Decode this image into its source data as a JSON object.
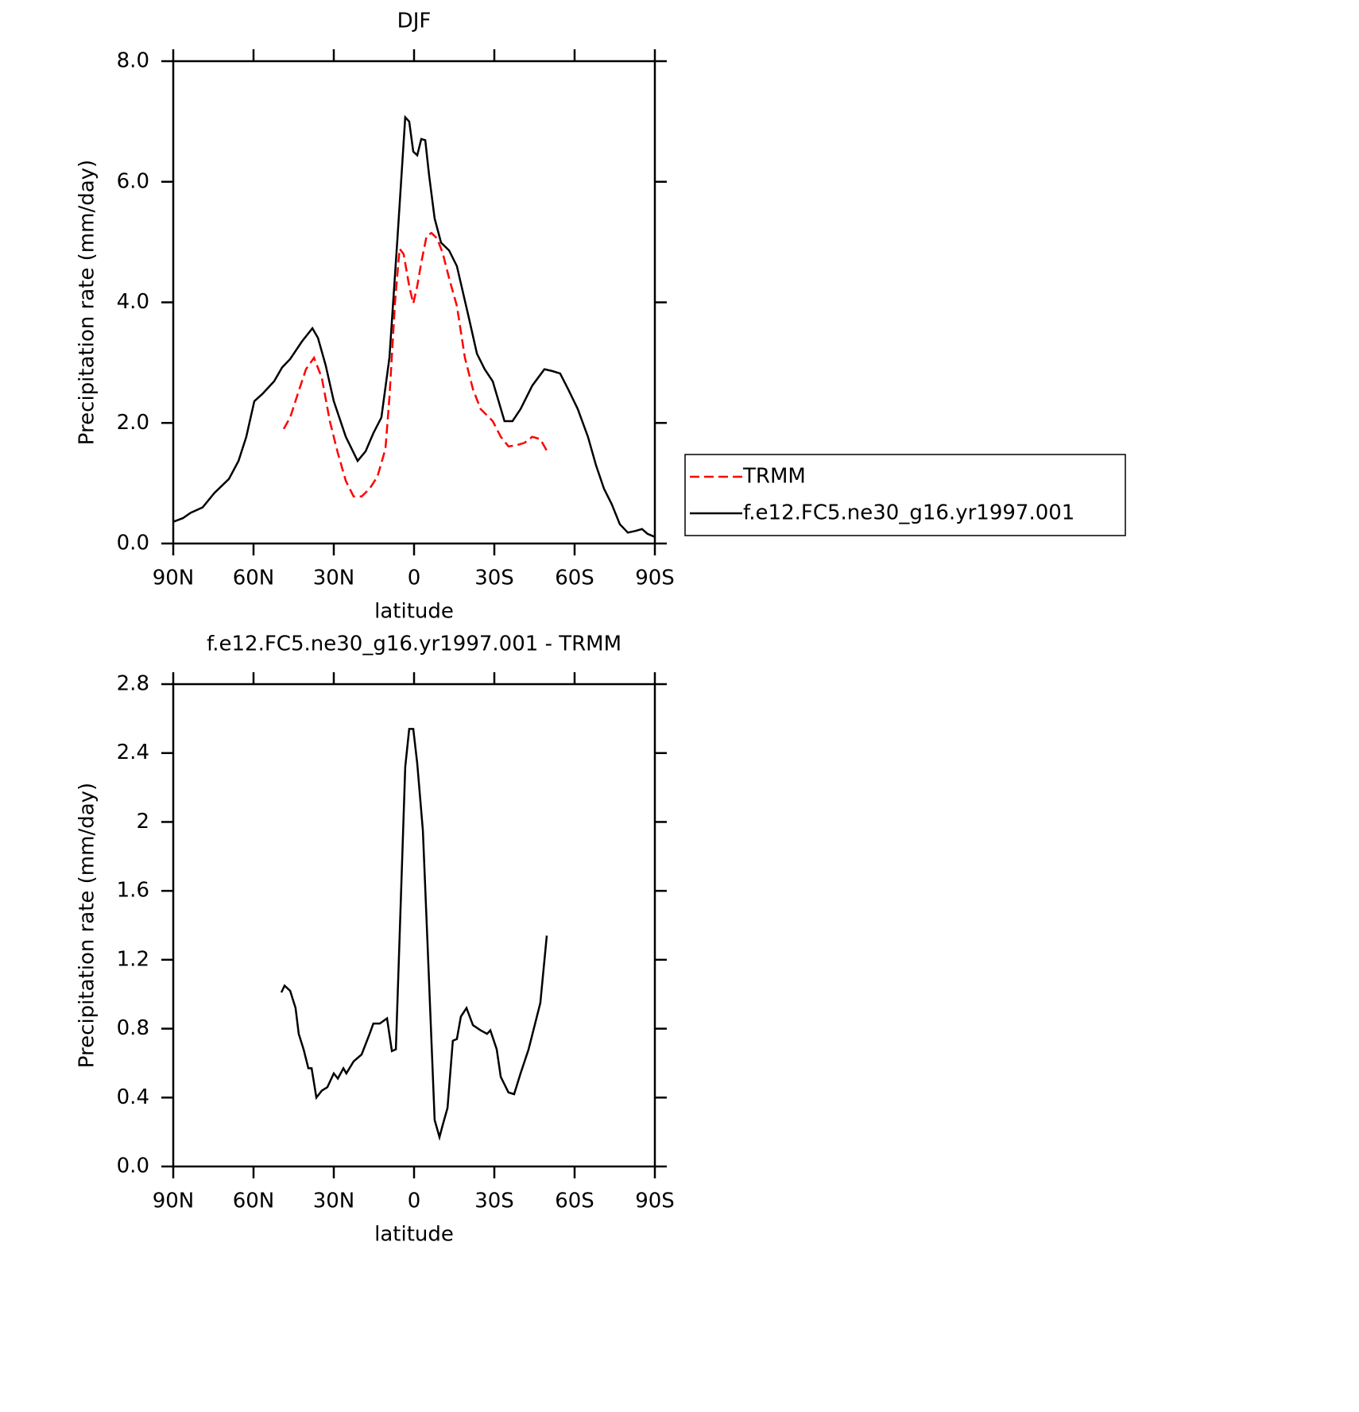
{
  "chart_data": [
    {
      "type": "line",
      "title": "DJF",
      "xlabel": "latitude",
      "ylabel": "Precipitation rate (mm/day)",
      "xlim": [
        90,
        -90
      ],
      "xticks": [
        {
          "value": 90,
          "label": "90N"
        },
        {
          "value": 60,
          "label": "60N"
        },
        {
          "value": 30,
          "label": "30N"
        },
        0,
        {
          "value": -30,
          "label": "30S"
        },
        {
          "value": -60,
          "label": "60S"
        },
        {
          "value": -90,
          "label": "90S"
        }
      ],
      "ylim": [
        0,
        8
      ],
      "yticks": [
        {
          "value": 0,
          "label": "0.0"
        },
        {
          "value": 2,
          "label": "2.0"
        },
        {
          "value": 4,
          "label": "4.0"
        },
        {
          "value": 6,
          "label": "6.0"
        },
        {
          "value": 8,
          "label": "8.0"
        }
      ],
      "series": [
        {
          "name": "TRMM",
          "color": "#ff0000",
          "dash": true,
          "x": [
            48.7,
            46.3,
            43.4,
            40.4,
            37.4,
            34.5,
            31.5,
            28.5,
            25.5,
            22.6,
            19.6,
            16.6,
            13.7,
            10.7,
            9.2,
            7.1,
            5.4,
            3.9,
            1.8,
            0.3,
            -1.2,
            -2.7,
            -4.7,
            -6.5,
            -8.6,
            -10.7,
            -13.1,
            -16,
            -19,
            -22,
            -24.9,
            -29.4,
            -32.4,
            -35.3,
            -38.3,
            -41.3,
            -44.2,
            -47.2,
            -49.6
          ],
          "values": [
            1.9,
            2.09,
            2.49,
            2.89,
            3.08,
            2.75,
            2.03,
            1.5,
            1.04,
            0.78,
            0.78,
            0.91,
            1.11,
            1.57,
            2.42,
            4.01,
            4.89,
            4.8,
            4.27,
            3.98,
            4.27,
            4.66,
            5.1,
            5.15,
            5.06,
            4.82,
            4.4,
            3.94,
            3.08,
            2.56,
            2.23,
            2.03,
            1.77,
            1.61,
            1.63,
            1.67,
            1.77,
            1.73,
            1.54
          ]
        },
        {
          "name": "f.e12.FC5.ne30_g16.yr1997.001",
          "color": "#000000",
          "dash": false,
          "x": [
            90,
            86.4,
            83.5,
            79,
            74.6,
            69.2,
            65.6,
            62.7,
            59.7,
            56.7,
            52.3,
            49.3,
            46.3,
            41.9,
            38,
            35.9,
            33,
            30,
            25.5,
            21.1,
            18.1,
            15.2,
            12.2,
            9.2,
            6.2,
            3.3,
            1.8,
            0.3,
            -1.2,
            -2.7,
            -4.2,
            -5.6,
            -7.7,
            -10.1,
            -13.1,
            -16,
            -20.5,
            -23.5,
            -26.4,
            -29.4,
            -33.8,
            -36.8,
            -39.8,
            -44.2,
            -48.7,
            -51.7,
            -54.6,
            -57.6,
            -61.2,
            -65,
            -68,
            -71,
            -73.9,
            -76.9,
            -79.9,
            -82.9,
            -85.2,
            -87.3,
            -90
          ],
          "values": [
            0.36,
            0.42,
            0.51,
            0.6,
            0.84,
            1.07,
            1.37,
            1.77,
            2.36,
            2.48,
            2.69,
            2.92,
            3.06,
            3.35,
            3.57,
            3.41,
            2.95,
            2.36,
            1.77,
            1.37,
            1.53,
            1.83,
            2.09,
            3.08,
            5.06,
            7.07,
            7.0,
            6.5,
            6.44,
            6.71,
            6.69,
            6.11,
            5.39,
            4.99,
            4.86,
            4.6,
            3.74,
            3.15,
            2.89,
            2.69,
            2.03,
            2.03,
            2.23,
            2.62,
            2.89,
            2.86,
            2.82,
            2.56,
            2.23,
            1.77,
            1.3,
            0.91,
            0.65,
            0.32,
            0.18,
            0.21,
            0.24,
            0.16,
            0.11
          ]
        }
      ]
    },
    {
      "type": "line",
      "title": "f.e12.FC5.ne30_g16.yr1997.001 - TRMM",
      "xlabel": "latitude",
      "ylabel": "Precipitation rate (mm/day)",
      "xlim": [
        90,
        -90
      ],
      "xticks": [
        {
          "value": 90,
          "label": "90N"
        },
        {
          "value": 60,
          "label": "60N"
        },
        {
          "value": 30,
          "label": "30N"
        },
        0,
        {
          "value": -30,
          "label": "30S"
        },
        {
          "value": -60,
          "label": "60S"
        },
        {
          "value": -90,
          "label": "90S"
        }
      ],
      "ylim": [
        0,
        2.8
      ],
      "yticks": [
        {
          "value": 0,
          "label": "0.0"
        },
        0.4,
        0.8,
        1.2,
        1.6,
        2.0,
        2.4,
        2.8
      ],
      "series": [
        {
          "color": "#000000",
          "dash": false,
          "x": [
            49.6,
            48.4,
            46.3,
            44.3,
            43.1,
            41.3,
            39.5,
            38.3,
            36.5,
            34.5,
            32.4,
            30,
            28.5,
            26.4,
            25.3,
            22.6,
            19.6,
            16.6,
            15.2,
            12.8,
            10.1,
            8.3,
            6.8,
            5.4,
            3.3,
            1.8,
            0.3,
            -1.2,
            -3.3,
            -5.0,
            -7.7,
            -9.5,
            -10.7,
            -12.5,
            -14.5,
            -16,
            -17.5,
            -19.6,
            -22,
            -24.9,
            -27.3,
            -28.5,
            -30.9,
            -32.4,
            -35.3,
            -37.4,
            -39.8,
            -42.8,
            -45.1,
            -47.2,
            -49.6
          ],
          "values": [
            1.01,
            1.05,
            1.02,
            0.92,
            0.77,
            0.68,
            0.57,
            0.57,
            0.4,
            0.44,
            0.46,
            0.54,
            0.51,
            0.57,
            0.54,
            0.61,
            0.65,
            0.77,
            0.83,
            0.83,
            0.86,
            0.67,
            0.68,
            1.33,
            2.32,
            2.54,
            2.54,
            2.34,
            1.95,
            1.31,
            0.27,
            0.17,
            0.24,
            0.34,
            0.73,
            0.74,
            0.87,
            0.92,
            0.82,
            0.79,
            0.77,
            0.79,
            0.68,
            0.52,
            0.43,
            0.42,
            0.54,
            0.68,
            0.82,
            0.95,
            1.34
          ]
        }
      ]
    }
  ]
}
